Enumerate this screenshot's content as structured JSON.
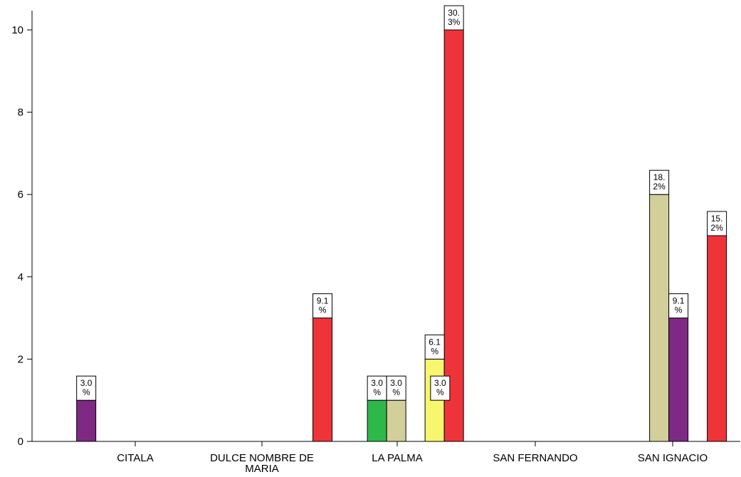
{
  "chart_data": {
    "type": "bar",
    "categories": [
      "CITALA",
      "DULCE NOMBRE DE MARIA",
      "LA PALMA",
      "SAN FERNANDO",
      "SAN IGNACIO"
    ],
    "category_lines": [
      [
        "CITALA"
      ],
      [
        "DULCE NOMBRE DE",
        "MARIA"
      ],
      [
        "LA PALMA"
      ],
      [
        "SAN FERNANDO"
      ],
      [
        "SAN IGNACIO"
      ]
    ],
    "ylim": [
      0,
      10
    ],
    "yticks": [
      0,
      2,
      4,
      6,
      8,
      10
    ],
    "grid": false,
    "legend": "none",
    "title": "",
    "xlabel": "",
    "ylabel": "",
    "series": [
      {
        "color": "#3a50a8",
        "values": [
          0,
          0,
          0,
          1,
          0
        ],
        "labels": [
          "",
          "",
          "",
          "3.0 %",
          ""
        ]
      },
      {
        "color": "#2fb84a",
        "values": [
          0,
          0,
          1,
          0,
          0
        ],
        "labels": [
          "",
          "",
          "3.0 %",
          "",
          ""
        ]
      },
      {
        "color": "#d3cf9b",
        "values": [
          0,
          0,
          1,
          0,
          6
        ],
        "labels": [
          "",
          "",
          "3.0 %",
          "",
          "18.2%"
        ]
      },
      {
        "color": "#7e2a84",
        "values": [
          1,
          0,
          0,
          0,
          3
        ],
        "labels": [
          "3.0 %",
          "",
          "",
          "",
          "9.1 %"
        ]
      },
      {
        "color": "#f8f56e",
        "values": [
          0,
          0,
          2,
          0,
          0
        ],
        "labels": [
          "",
          "",
          "6.1 %",
          "",
          ""
        ]
      },
      {
        "color": "#ef3439",
        "values": [
          0,
          3,
          10,
          0,
          5
        ],
        "labels": [
          "",
          "9.1 %",
          "30.3%",
          "",
          "15.2%"
        ]
      }
    ]
  }
}
